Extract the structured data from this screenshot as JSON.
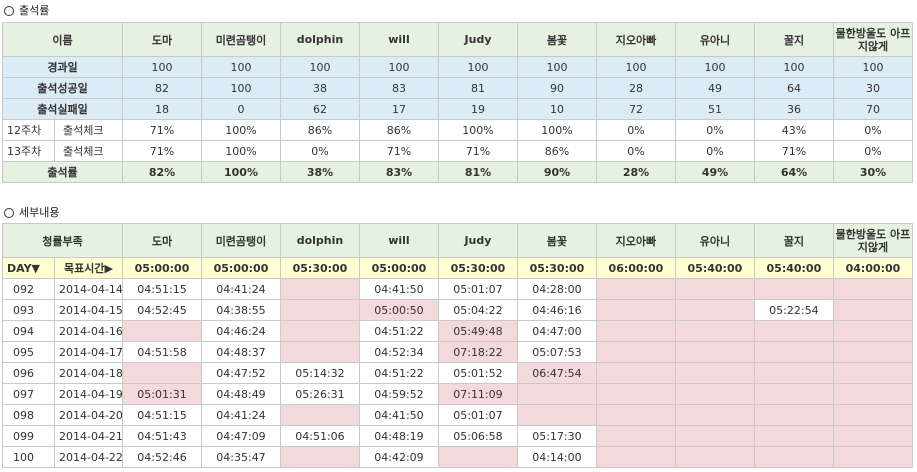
{
  "attendance": {
    "title": "출석률",
    "header_label": "이름",
    "names": [
      "도마",
      "미련곰탱이",
      "dolphin",
      "will",
      "Judy",
      "봄꽃",
      "지오아빠",
      "유아니",
      "꿀지",
      "물한방울도 아프지않게"
    ],
    "rows": [
      {
        "label": "경과일",
        "values": [
          "100",
          "100",
          "100",
          "100",
          "100",
          "100",
          "100",
          "100",
          "100",
          "100"
        ]
      },
      {
        "label": "출석성공일",
        "values": [
          "82",
          "100",
          "38",
          "83",
          "81",
          "90",
          "28",
          "49",
          "64",
          "30"
        ]
      },
      {
        "label": "출석실패일",
        "values": [
          "18",
          "0",
          "62",
          "17",
          "19",
          "10",
          "72",
          "51",
          "36",
          "70"
        ]
      }
    ],
    "weekly": [
      {
        "week": "12주차",
        "label": "출석체크",
        "values": [
          "71%",
          "100%",
          "86%",
          "86%",
          "100%",
          "100%",
          "0%",
          "0%",
          "43%",
          "0%"
        ]
      },
      {
        "week": "13주차",
        "label": "출석체크",
        "values": [
          "71%",
          "100%",
          "0%",
          "71%",
          "71%",
          "86%",
          "0%",
          "0%",
          "71%",
          "0%"
        ]
      }
    ],
    "total": {
      "label": "출석률",
      "values": [
        "82%",
        "100%",
        "38%",
        "83%",
        "81%",
        "90%",
        "28%",
        "49%",
        "64%",
        "30%"
      ]
    }
  },
  "details": {
    "title": "세부내용",
    "header_label": "청률부족",
    "names": [
      "도마",
      "미련곰탱이",
      "dolphin",
      "will",
      "Judy",
      "봄꽃",
      "지오아빠",
      "유아니",
      "꿀지",
      "물한방울도 아프지않게"
    ],
    "day_label": "DAY▼",
    "target_label": "목표시간▶",
    "targets": [
      "05:00:00",
      "05:00:00",
      "05:30:00",
      "05:00:00",
      "05:30:00",
      "05:30:00",
      "06:00:00",
      "05:40:00",
      "05:40:00",
      "04:00:00"
    ],
    "rows": [
      {
        "day": "092",
        "date": "2014-04-14",
        "values": [
          "04:51:15",
          "04:41:24",
          "",
          "04:41:50",
          "05:01:07",
          "04:28:00",
          "",
          "",
          "",
          ""
        ]
      },
      {
        "day": "093",
        "date": "2014-04-15",
        "values": [
          "04:52:45",
          "04:38:55",
          "",
          "05:00:50",
          "05:04:22",
          "04:46:16",
          "",
          "",
          "05:22:54",
          ""
        ]
      },
      {
        "day": "094",
        "date": "2014-04-16",
        "values": [
          "",
          "04:46:24",
          "",
          "04:51:22",
          "05:49:48",
          "04:47:00",
          "",
          "",
          "",
          ""
        ]
      },
      {
        "day": "095",
        "date": "2014-04-17",
        "values": [
          "04:51:58",
          "04:48:37",
          "",
          "04:52:34",
          "07:18:22",
          "05:07:53",
          "",
          "",
          "",
          ""
        ]
      },
      {
        "day": "096",
        "date": "2014-04-18",
        "values": [
          "",
          "04:47:52",
          "05:14:32",
          "04:51:22",
          "05:01:52",
          "06:47:54",
          "",
          "",
          "",
          ""
        ]
      },
      {
        "day": "097",
        "date": "2014-04-19",
        "values": [
          "05:01:31",
          "04:48:49",
          "05:26:31",
          "04:59:52",
          "07:11:09",
          "",
          "",
          "",
          "",
          ""
        ]
      },
      {
        "day": "098",
        "date": "2014-04-20",
        "values": [
          "04:51:15",
          "04:41:24",
          "",
          "04:41:50",
          "05:01:07",
          "",
          "",
          "",
          "",
          ""
        ]
      },
      {
        "day": "099",
        "date": "2014-04-21",
        "values": [
          "04:51:43",
          "04:47:09",
          "04:51:06",
          "04:48:19",
          "05:06:58",
          "05:17:30",
          "",
          "",
          "",
          ""
        ]
      },
      {
        "day": "100",
        "date": "2014-04-22",
        "values": [
          "04:52:46",
          "04:35:47",
          "",
          "04:42:09",
          "",
          "04:14:00",
          "",
          "",
          "",
          ""
        ]
      }
    ],
    "pink_cells": [
      [
        0,
        2
      ],
      [
        0,
        6
      ],
      [
        0,
        7
      ],
      [
        0,
        8
      ],
      [
        0,
        9
      ],
      [
        1,
        2
      ],
      [
        1,
        3
      ],
      [
        1,
        6
      ],
      [
        1,
        7
      ],
      [
        1,
        9
      ],
      [
        2,
        0
      ],
      [
        2,
        2
      ],
      [
        2,
        4
      ],
      [
        2,
        6
      ],
      [
        2,
        7
      ],
      [
        2,
        8
      ],
      [
        2,
        9
      ],
      [
        3,
        2
      ],
      [
        3,
        4
      ],
      [
        3,
        6
      ],
      [
        3,
        7
      ],
      [
        3,
        8
      ],
      [
        3,
        9
      ],
      [
        4,
        0
      ],
      [
        4,
        5
      ],
      [
        4,
        6
      ],
      [
        4,
        7
      ],
      [
        4,
        8
      ],
      [
        4,
        9
      ],
      [
        5,
        0
      ],
      [
        5,
        4
      ],
      [
        5,
        5
      ],
      [
        5,
        6
      ],
      [
        5,
        7
      ],
      [
        5,
        8
      ],
      [
        5,
        9
      ],
      [
        6,
        2
      ],
      [
        6,
        5
      ],
      [
        6,
        6
      ],
      [
        6,
        7
      ],
      [
        6,
        8
      ],
      [
        6,
        9
      ],
      [
        7,
        6
      ],
      [
        7,
        7
      ],
      [
        7,
        8
      ],
      [
        7,
        9
      ],
      [
        8,
        2
      ],
      [
        8,
        4
      ],
      [
        8,
        6
      ],
      [
        8,
        7
      ],
      [
        8,
        8
      ],
      [
        8,
        9
      ]
    ]
  },
  "colors": {
    "header_green": "#e6f2e1",
    "row_blue": "#dcecf7",
    "target_yellow": "#ffffd2",
    "fail_pink": "#f4d9da",
    "border": "#c9c9c9"
  }
}
